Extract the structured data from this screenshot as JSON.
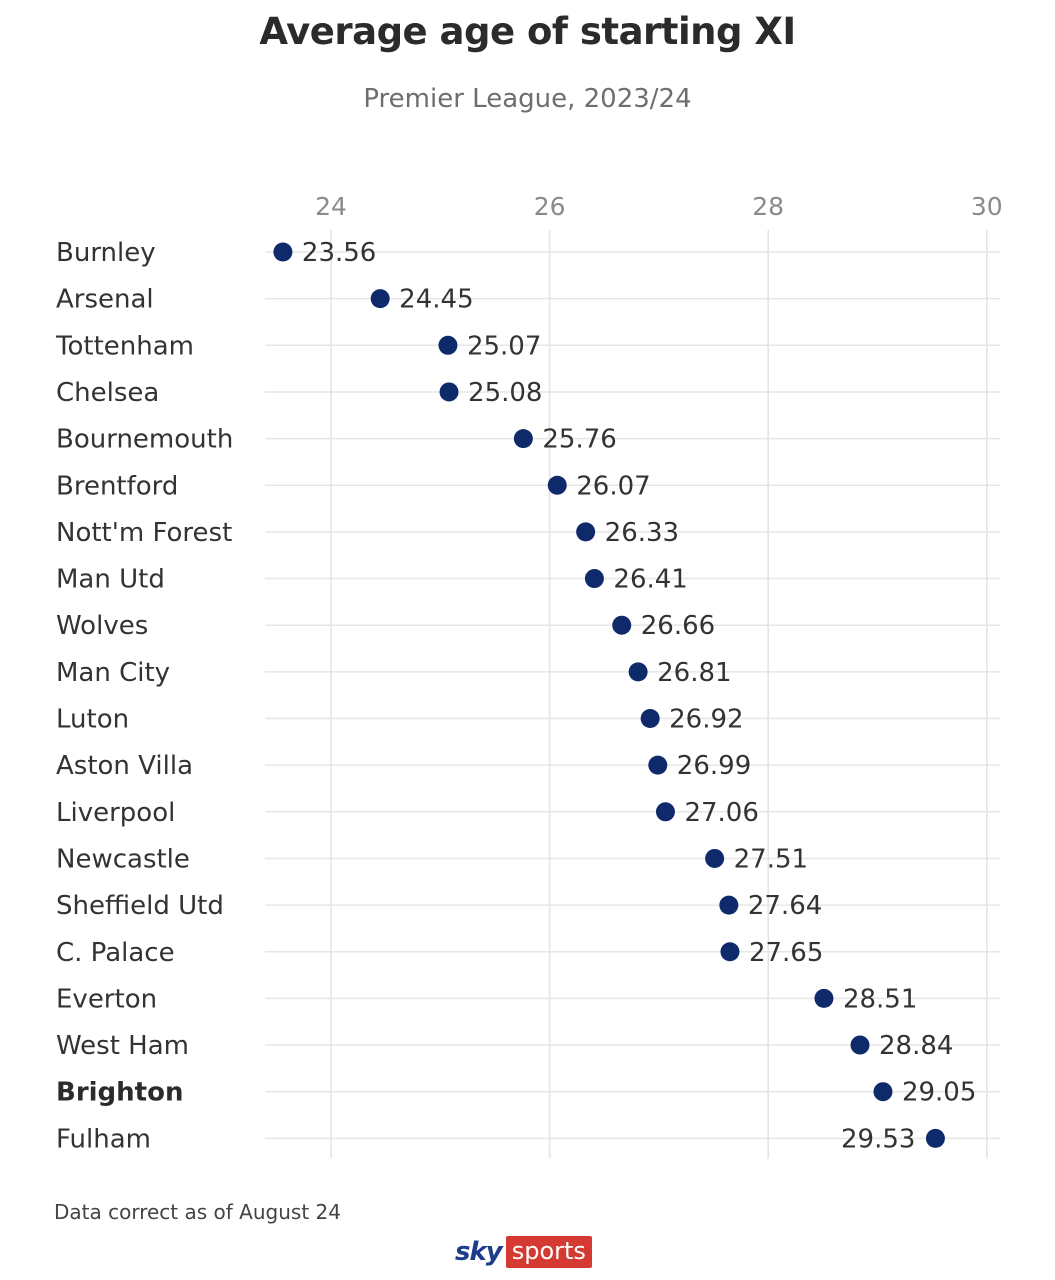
{
  "chart_data": {
    "type": "scatter",
    "title": "Average age of starting XI",
    "subtitle": "Premier League, 2023/24",
    "xlabel": "",
    "ylabel": "",
    "xlim": [
      23.4,
      30.0
    ],
    "xticks": [
      24,
      26,
      28,
      30
    ],
    "xtick_labels": [
      "24",
      "26",
      "28",
      "30"
    ],
    "grid": true,
    "point_color": "#0f2a6b",
    "categories": [
      "Burnley",
      "Arsenal",
      "Tottenham",
      "Chelsea",
      "Bournemouth",
      "Brentford",
      "Nott'm Forest",
      "Man Utd",
      "Wolves",
      "Man City",
      "Luton",
      "Aston Villa",
      "Liverpool",
      "Newcastle",
      "Sheffield Utd",
      "C. Palace",
      "Everton",
      "West Ham",
      "Brighton",
      "Fulham"
    ],
    "values": [
      23.56,
      24.45,
      25.07,
      25.08,
      25.76,
      26.07,
      26.33,
      26.41,
      26.66,
      26.81,
      26.92,
      26.99,
      27.06,
      27.51,
      27.64,
      27.65,
      28.51,
      28.84,
      29.05,
      29.53
    ],
    "value_labels": [
      "23.56",
      "24.45",
      "25.07",
      "25.08",
      "25.76",
      "26.07",
      "26.33",
      "26.41",
      "26.66",
      "26.81",
      "26.92",
      "26.99",
      "27.06",
      "27.51",
      "27.64",
      "27.65",
      "28.51",
      "28.84",
      "29.05",
      "29.53"
    ],
    "highlighted": [
      "Brighton"
    ]
  },
  "footer": {
    "note": "Data correct as of August 24",
    "logo_sky": "sky",
    "logo_sports": "sports"
  }
}
